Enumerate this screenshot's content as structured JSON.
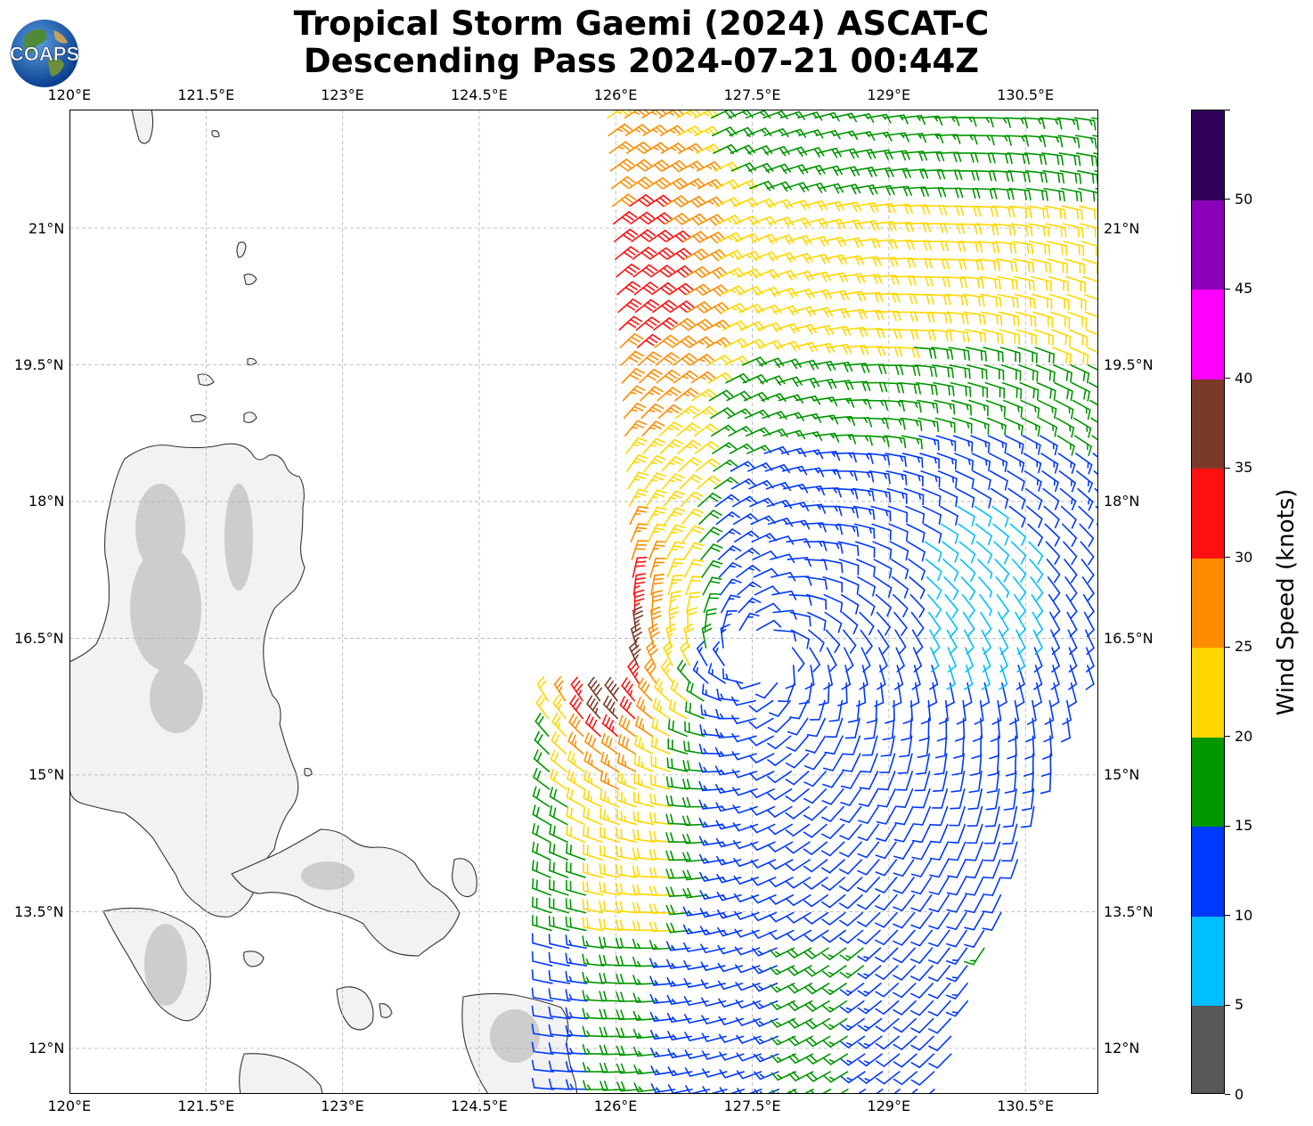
{
  "title": {
    "line1": "Tropical Storm Gaemi (2024) ASCAT-C",
    "line2": "Descending Pass 2024-07-21 00:44Z"
  },
  "logo": {
    "text": "COAPS"
  },
  "map": {
    "lon_range": [
      120.0,
      131.3
    ],
    "lat_range": [
      11.5,
      22.3
    ],
    "x_ticks": [
      "120°E",
      "121.5°E",
      "123°E",
      "124.5°E",
      "126°E",
      "127.5°E",
      "129°E",
      "130.5°E"
    ],
    "y_ticks": [
      "21°N",
      "19.5°N",
      "18°N",
      "16.5°N",
      "15°N",
      "13.5°N",
      "12°N"
    ],
    "storm_center": {
      "lon": 127.6,
      "lat": 16.3
    }
  },
  "colorbar": {
    "title": "Wind Speed (knots)",
    "ticks": [
      "0",
      "5",
      "10",
      "15",
      "20",
      "25",
      "30",
      "35",
      "40",
      "45",
      "50"
    ],
    "bins": [
      {
        "max": 5,
        "color": "#585858"
      },
      {
        "max": 10,
        "color": "#00bfff"
      },
      {
        "max": 15,
        "color": "#0038ff"
      },
      {
        "max": 20,
        "color": "#009600"
      },
      {
        "max": 25,
        "color": "#ffd700"
      },
      {
        "max": 30,
        "color": "#ff8c00"
      },
      {
        "max": 35,
        "color": "#ff1010"
      },
      {
        "max": 40,
        "color": "#7b3a28"
      },
      {
        "max": 45,
        "color": "#ff00ff"
      },
      {
        "max": 50,
        "color": "#8b00b9"
      },
      {
        "max": 55,
        "color": "#2e0058"
      }
    ]
  },
  "colors": {
    "land_outline": "#333333",
    "grid": "#b0b0b0"
  }
}
